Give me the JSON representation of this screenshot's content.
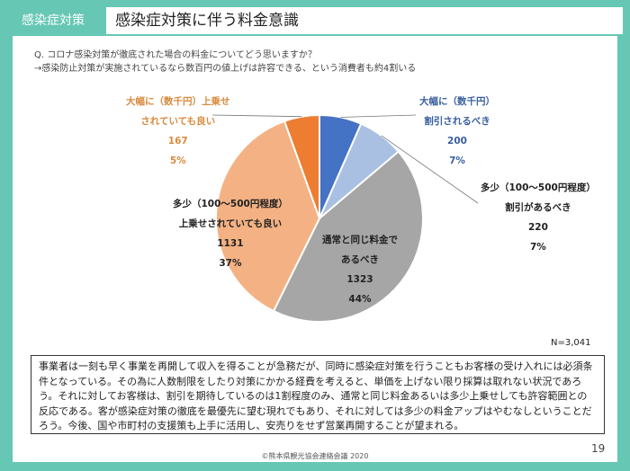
{
  "header": {
    "tag": "感染症対策",
    "title": "感染症対策に伴う料金意識"
  },
  "question": {
    "line1": "Q. コロナ感染対策が徹底された場合の料金についてどう思いますか？",
    "line2": "→感染防止対策が実施されているなら数百円の値上げは許容できる、という消費者も約4割いる"
  },
  "chart_data": {
    "type": "pie",
    "total_label": "N=3,041",
    "slices": [
      {
        "label_lines": [
          "大幅に（数千円）",
          "割引されるべき"
        ],
        "value": 200,
        "percent_label": "7%",
        "color": "#4472c4"
      },
      {
        "label_lines": [
          "多少（100～500円程度）",
          "割引があるべき"
        ],
        "value": 220,
        "percent_label": "7%",
        "color": "#a9c0e3"
      },
      {
        "label_lines": [
          "通常と同じ料金で",
          "あるべき"
        ],
        "value": 1323,
        "percent_label": "44%",
        "color": "#a6a6a6"
      },
      {
        "label_lines": [
          "多少（100～500円程度）",
          "上乗せされていても良い"
        ],
        "value": 1131,
        "percent_label": "37%",
        "color": "#f4b183"
      },
      {
        "label_lines": [
          "大幅に（数千円）上乗せ",
          "されていても良い"
        ],
        "value": 167,
        "percent_label": "5%",
        "color": "#ed7d31"
      }
    ]
  },
  "summary": {
    "text": "事業者は一刻も早く事業を再開して収入を得ることが急務だが、同時に感染症対策を行うこともお客様の受け入れには必須条件となっている。その為に人数制限をしたり対策にかかる経費を考えると、単価を上げない限り採算は取れない状況であろう。それに対してお客様は、割引を期待しているのは1割程度のみ、通常と同じ料金あるいは多少上乗せしても許容範囲との反応である。客が感染症対策の徹底を最優先に望む現れでもあり、それに対しては多少の料金アップはやむなしということだろう。今後、国や市町村の支援策も上手に活用し、安売りをせず営業再開することが望まれる。"
  },
  "footer": {
    "page_number": "19",
    "copyright": "©熊本県観光協会連絡会議 2020"
  }
}
